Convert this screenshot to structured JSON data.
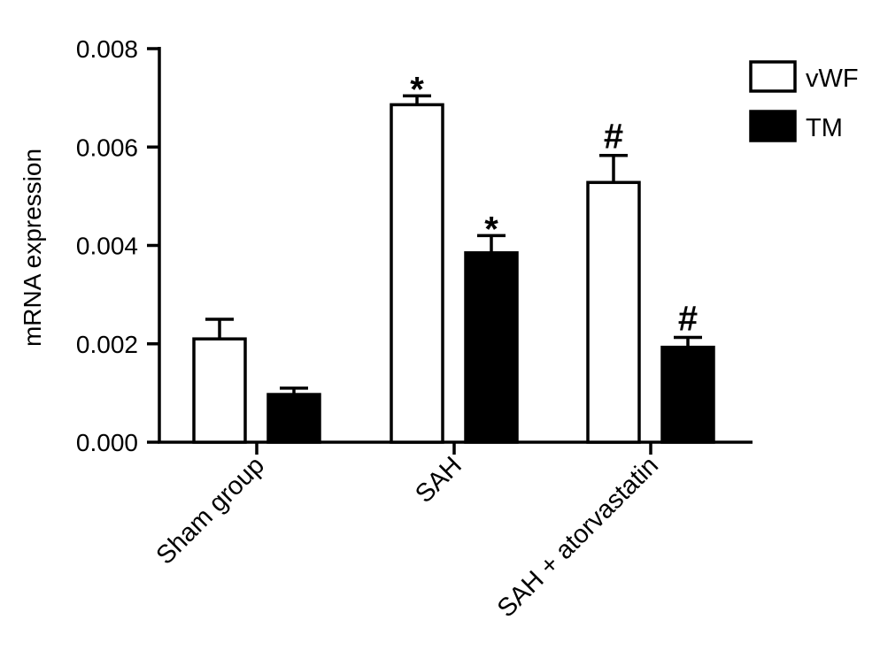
{
  "chart_data": {
    "type": "bar",
    "title": "",
    "xlabel": "",
    "ylabel": "mRNA expression",
    "ylim": [
      0,
      0.008
    ],
    "yticks": [
      "0.000",
      "0.002",
      "0.004",
      "0.006",
      "0.008"
    ],
    "categories": [
      "Sham group",
      "SAH",
      "SAH + atorvastatin"
    ],
    "series": [
      {
        "name": "vWF",
        "fill": "#ffffff",
        "values": [
          0.0021,
          0.00686,
          0.00528
        ],
        "errors": [
          0.0004,
          0.00018,
          0.00055
        ],
        "annotations": [
          "",
          "*",
          "#"
        ]
      },
      {
        "name": "TM",
        "fill": "#000000",
        "values": [
          0.00097,
          0.00385,
          0.00193
        ],
        "errors": [
          0.00013,
          0.00035,
          0.0002
        ],
        "annotations": [
          "",
          "*",
          "#"
        ]
      }
    ],
    "legend_position": "top-right",
    "grid": false
  }
}
